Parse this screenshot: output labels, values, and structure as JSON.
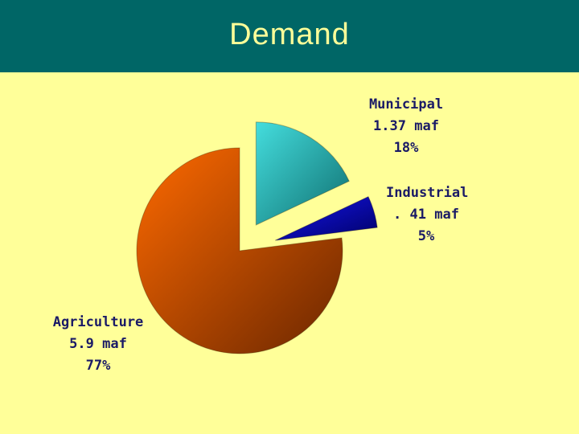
{
  "title": "Demand",
  "colors": {
    "background": "#ffff99",
    "title_bar": "#006666",
    "title_text": "#ffff99",
    "label_text": "#1a1a66"
  },
  "chart_data": {
    "type": "pie",
    "title": "Demand",
    "exploded": true,
    "slices": [
      {
        "name": "Municipal",
        "value": 1.37,
        "unit": "maf",
        "amount_label": "1.37 maf",
        "percent": 18,
        "percent_label": "18%",
        "color": "#2aa9a9"
      },
      {
        "name": "Industrial",
        "value": 0.41,
        "unit": "maf",
        "amount_label": ". 41 maf",
        "percent": 5,
        "percent_label": "5%",
        "color": "#0000aa"
      },
      {
        "name": "Agriculture",
        "value": 5.9,
        "unit": "maf",
        "amount_label": "5.9 maf",
        "percent": 77,
        "percent_label": "77%",
        "color": "#cc5500"
      }
    ]
  }
}
